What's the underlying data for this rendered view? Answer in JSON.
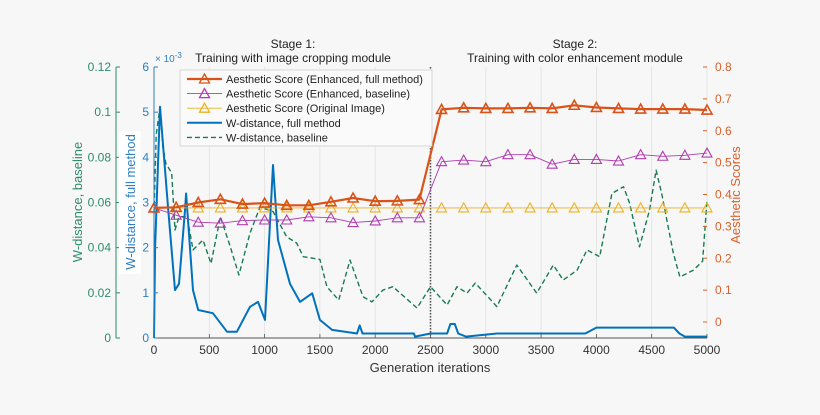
{
  "chart_data": {
    "type": "line",
    "annotations": [
      {
        "line1": "Stage 1:",
        "line2": "Training with image cropping module"
      },
      {
        "line1": "Stage 2:",
        "line2": "Training with color enhancement module"
      }
    ],
    "stage_divider_x": 2500,
    "xlabel": "Generation iterations",
    "xlim": [
      0,
      5000
    ],
    "xticks": [
      0,
      500,
      1000,
      1500,
      2000,
      2500,
      3000,
      3500,
      4000,
      4500,
      5000
    ],
    "grid": "vertical",
    "legend_position": "top-left",
    "axes": {
      "left_outer": {
        "label": "W-distance, baseline",
        "ylim": [
          0,
          0.12
        ],
        "ticks": [
          "0",
          "0.02",
          "0.04",
          "0.06",
          "0.08",
          "0.1",
          "0.12"
        ],
        "color": "#2e8b6e"
      },
      "left_inner": {
        "label": "W-distance, full method",
        "ylim": [
          0,
          6
        ],
        "ticks": [
          "0",
          "1",
          "2",
          "3",
          "4",
          "5",
          "6"
        ],
        "exponent": "× 10",
        "exponent_power": "-3",
        "color": "#2f7fc1"
      },
      "right": {
        "label": "Aesthetic Scores",
        "ylim": [
          -0.05,
          0.8
        ],
        "ticks": [
          "0",
          "0.1",
          "0.2",
          "0.3",
          "0.4",
          "0.5",
          "0.6",
          "0.7",
          "0.8"
        ],
        "color": "#d9602a"
      }
    },
    "series": [
      {
        "name": "Aesthetic Score (Enhanced, full method)",
        "axis": "right",
        "color": "#d95319",
        "style": "solid-thick-triangle",
        "x": [
          0,
          200,
          400,
          600,
          800,
          1000,
          1200,
          1400,
          1600,
          1800,
          2000,
          2200,
          2400,
          2600,
          2800,
          3000,
          3200,
          3400,
          3600,
          3800,
          4000,
          4200,
          4400,
          4600,
          4800,
          5000
        ],
        "y": [
          0.358,
          0.36,
          0.375,
          0.385,
          0.37,
          0.373,
          0.366,
          0.366,
          0.377,
          0.389,
          0.379,
          0.38,
          0.384,
          0.667,
          0.672,
          0.67,
          0.67,
          0.672,
          0.67,
          0.68,
          0.673,
          0.67,
          0.668,
          0.668,
          0.668,
          0.665
        ]
      },
      {
        "name": "Aesthetic Score (Enhanced, baseline)",
        "axis": "right",
        "color": "#b03cb0",
        "style": "solid-thin-triangle",
        "x": [
          0,
          200,
          400,
          600,
          800,
          1000,
          1200,
          1400,
          1600,
          1800,
          2000,
          2200,
          2400,
          2600,
          2800,
          3000,
          3200,
          3400,
          3600,
          3800,
          4000,
          4200,
          4400,
          4600,
          4800,
          5000
        ],
        "y": [
          0.358,
          0.335,
          0.313,
          0.31,
          0.318,
          0.32,
          0.32,
          0.33,
          0.327,
          0.312,
          0.317,
          0.327,
          0.327,
          0.503,
          0.508,
          0.503,
          0.525,
          0.525,
          0.495,
          0.51,
          0.51,
          0.505,
          0.525,
          0.52,
          0.523,
          0.53
        ]
      },
      {
        "name": "Aesthetic Score (Original Image)",
        "axis": "right",
        "color": "#edb120",
        "style": "solid-thin-triangle",
        "x": [
          0,
          200,
          400,
          600,
          800,
          1000,
          1200,
          1400,
          1600,
          1800,
          2000,
          2200,
          2400,
          2600,
          2800,
          3000,
          3200,
          3400,
          3600,
          3800,
          4000,
          4200,
          4400,
          4600,
          4800,
          5000
        ],
        "y": [
          0.358,
          0.358,
          0.358,
          0.358,
          0.358,
          0.358,
          0.358,
          0.358,
          0.358,
          0.358,
          0.358,
          0.358,
          0.358,
          0.358,
          0.358,
          0.358,
          0.358,
          0.358,
          0.358,
          0.358,
          0.358,
          0.358,
          0.358,
          0.358,
          0.358,
          0.358
        ]
      },
      {
        "name": "W-distance, full method",
        "axis": "left_inner",
        "color": "#0072bd",
        "style": "solid",
        "x": [
          0,
          10,
          54,
          127,
          190,
          226,
          280,
          290,
          353,
          400,
          533,
          660,
          750,
          868,
          940,
          1004,
          1076,
          1121,
          1230,
          1320,
          1430,
          1500,
          1610,
          1835,
          1860,
          1885,
          2350,
          2360,
          2500,
          2650,
          2680,
          2720,
          2750,
          2820,
          3100,
          3900,
          4000,
          4700,
          4750,
          4800,
          5000
        ],
        "y": [
          0,
          2.0,
          5.12,
          2.9,
          1.06,
          1.2,
          2.83,
          3.2,
          1.06,
          0.62,
          0.55,
          0.14,
          0.14,
          0.69,
          0.8,
          0.4,
          3.83,
          2.17,
          1.2,
          0.8,
          0.99,
          0.4,
          0.18,
          0.1,
          0.28,
          0.1,
          0.1,
          0.03,
          0.1,
          0.1,
          0.31,
          0.31,
          0.1,
          0.03,
          0.1,
          0.1,
          0.23,
          0.23,
          0.1,
          0.03,
          0.03
        ]
      },
      {
        "name": "W-distance, baseline",
        "axis": "left_outer",
        "color": "#1a7a52",
        "style": "dashed",
        "x": [
          0,
          20,
          54,
          80,
          108,
          160,
          190,
          226,
          300,
          353,
          443,
          515,
          600,
          690,
          768,
          868,
          958,
          1076,
          1200,
          1290,
          1350,
          1500,
          1563,
          1670,
          1772,
          1890,
          1970,
          2070,
          2160,
          2378,
          2500,
          2650,
          2740,
          2830,
          2905,
          3100,
          3280,
          3460,
          3610,
          3700,
          3825,
          3915,
          4030,
          4140,
          4245,
          4300,
          4390,
          4480,
          4540,
          4590,
          4695,
          4755,
          4875,
          4960,
          5000
        ],
        "y": [
          0.055,
          0.09,
          0.1023,
          0.0846,
          0.0773,
          0.073,
          0.0478,
          0.0537,
          0.0537,
          0.039,
          0.0434,
          0.033,
          0.0537,
          0.0404,
          0.0279,
          0.0464,
          0.058,
          0.056,
          0.0448,
          0.042,
          0.036,
          0.0348,
          0.0227,
          0.0168,
          0.0345,
          0.0183,
          0.016,
          0.0212,
          0.0227,
          0.0133,
          0.0227,
          0.0146,
          0.0227,
          0.0199,
          0.0243,
          0.0139,
          0.0323,
          0.0199,
          0.0323,
          0.0257,
          0.03,
          0.039,
          0.036,
          0.064,
          0.067,
          0.0597,
          0.0404,
          0.0566,
          0.0743,
          0.064,
          0.0376,
          0.027,
          0.03,
          0.034,
          0.061
        ]
      }
    ]
  }
}
